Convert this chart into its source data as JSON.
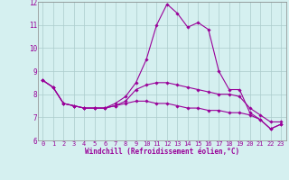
{
  "xlabel": "Windchill (Refroidissement éolien,°C)",
  "hours": [
    0,
    1,
    2,
    3,
    4,
    5,
    6,
    7,
    8,
    9,
    10,
    11,
    12,
    13,
    14,
    15,
    16,
    17,
    18,
    19,
    20,
    21,
    22,
    23
  ],
  "line1": [
    8.6,
    8.3,
    7.6,
    7.5,
    7.4,
    7.4,
    7.4,
    7.6,
    7.9,
    8.5,
    9.5,
    11.0,
    11.9,
    11.5,
    10.9,
    11.1,
    10.8,
    9.0,
    8.2,
    8.2,
    7.2,
    6.9,
    6.5,
    6.7
  ],
  "line2": [
    8.6,
    8.3,
    7.6,
    7.5,
    7.4,
    7.4,
    7.4,
    7.5,
    7.7,
    8.2,
    8.4,
    8.5,
    8.5,
    8.4,
    8.3,
    8.2,
    8.1,
    8.0,
    8.0,
    7.9,
    7.4,
    7.1,
    6.8,
    6.8
  ],
  "line3": [
    8.6,
    8.3,
    7.6,
    7.5,
    7.4,
    7.4,
    7.4,
    7.5,
    7.6,
    7.7,
    7.7,
    7.6,
    7.6,
    7.5,
    7.4,
    7.4,
    7.3,
    7.3,
    7.2,
    7.2,
    7.1,
    6.9,
    6.5,
    6.7
  ],
  "line_color": "#990099",
  "bg_color": "#d5f0f0",
  "grid_color": "#aacccc",
  "ylim": [
    6,
    12
  ],
  "xlim": [
    0,
    23
  ],
  "yticks": [
    6,
    7,
    8,
    9,
    10,
    11,
    12
  ],
  "xticks": [
    0,
    1,
    2,
    3,
    4,
    5,
    6,
    7,
    8,
    9,
    10,
    11,
    12,
    13,
    14,
    15,
    16,
    17,
    18,
    19,
    20,
    21,
    22,
    23
  ],
  "tick_fontsize": 5,
  "xlabel_fontsize": 5.5,
  "marker": "D",
  "markersize": 1.8,
  "linewidth": 0.8
}
